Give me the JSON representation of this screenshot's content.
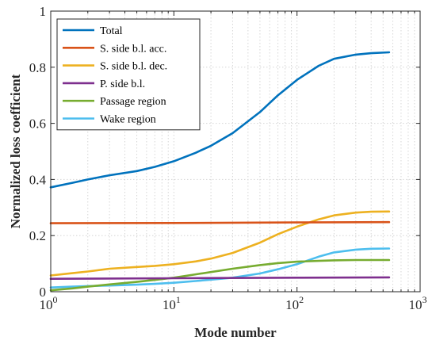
{
  "chart_data": {
    "type": "line",
    "xlabel": "Mode number",
    "ylabel": "Normalized loss coefficient",
    "xscale": "log",
    "xlim": [
      1,
      1000
    ],
    "ylim": [
      0,
      1
    ],
    "grid": true,
    "legend_position": "top-left",
    "x_ticks": [
      {
        "value": 1,
        "base": "10",
        "exp": "0"
      },
      {
        "value": 10,
        "base": "10",
        "exp": "1"
      },
      {
        "value": 100,
        "base": "10",
        "exp": "2"
      },
      {
        "value": 1000,
        "base": "10",
        "exp": "3"
      }
    ],
    "y_ticks": [
      {
        "value": 0,
        "label": "0"
      },
      {
        "value": 0.2,
        "label": "0.2"
      },
      {
        "value": 0.4,
        "label": "0.4"
      },
      {
        "value": 0.6,
        "label": "0.6"
      },
      {
        "value": 0.8,
        "label": "0.8"
      },
      {
        "value": 1,
        "label": "1"
      }
    ],
    "series": [
      {
        "name": "Total",
        "color": "#0072BD",
        "x": [
          1,
          1.5,
          2,
          3,
          5,
          7,
          10,
          15,
          20,
          30,
          50,
          70,
          100,
          150,
          200,
          300,
          400,
          560
        ],
        "y": [
          0.372,
          0.388,
          0.4,
          0.415,
          0.43,
          0.445,
          0.465,
          0.495,
          0.52,
          0.565,
          0.64,
          0.7,
          0.755,
          0.805,
          0.83,
          0.845,
          0.85,
          0.853
        ]
      },
      {
        "name": "S. side b.l. acc.",
        "color": "#D95319",
        "x": [
          1,
          10,
          100,
          560
        ],
        "y": [
          0.244,
          0.245,
          0.247,
          0.248
        ]
      },
      {
        "name": "S. side b.l. dec.",
        "color": "#EDB120",
        "x": [
          1,
          1.5,
          2,
          3,
          5,
          7,
          10,
          15,
          20,
          30,
          50,
          70,
          100,
          150,
          200,
          300,
          400,
          560
        ],
        "y": [
          0.058,
          0.066,
          0.072,
          0.082,
          0.088,
          0.092,
          0.098,
          0.108,
          0.118,
          0.138,
          0.175,
          0.205,
          0.232,
          0.258,
          0.272,
          0.282,
          0.285,
          0.286
        ]
      },
      {
        "name": "P. side b.l.",
        "color": "#7E2F8E",
        "x": [
          1,
          10,
          100,
          560
        ],
        "y": [
          0.046,
          0.048,
          0.05,
          0.051
        ]
      },
      {
        "name": "Passage region",
        "color": "#77AC30",
        "x": [
          1,
          1.5,
          2,
          3,
          5,
          7,
          10,
          15,
          20,
          30,
          50,
          70,
          100,
          150,
          200,
          300,
          400,
          560
        ],
        "y": [
          0.005,
          0.012,
          0.018,
          0.026,
          0.035,
          0.042,
          0.05,
          0.062,
          0.07,
          0.082,
          0.095,
          0.102,
          0.107,
          0.11,
          0.112,
          0.113,
          0.113,
          0.113
        ]
      },
      {
        "name": "Wake region",
        "color": "#4DBEEE",
        "x": [
          1,
          1.5,
          2,
          3,
          5,
          7,
          10,
          15,
          20,
          30,
          50,
          70,
          100,
          150,
          200,
          300,
          400,
          560
        ],
        "y": [
          0.015,
          0.018,
          0.02,
          0.022,
          0.025,
          0.028,
          0.032,
          0.038,
          0.043,
          0.05,
          0.065,
          0.08,
          0.098,
          0.125,
          0.14,
          0.15,
          0.153,
          0.154
        ]
      }
    ]
  }
}
